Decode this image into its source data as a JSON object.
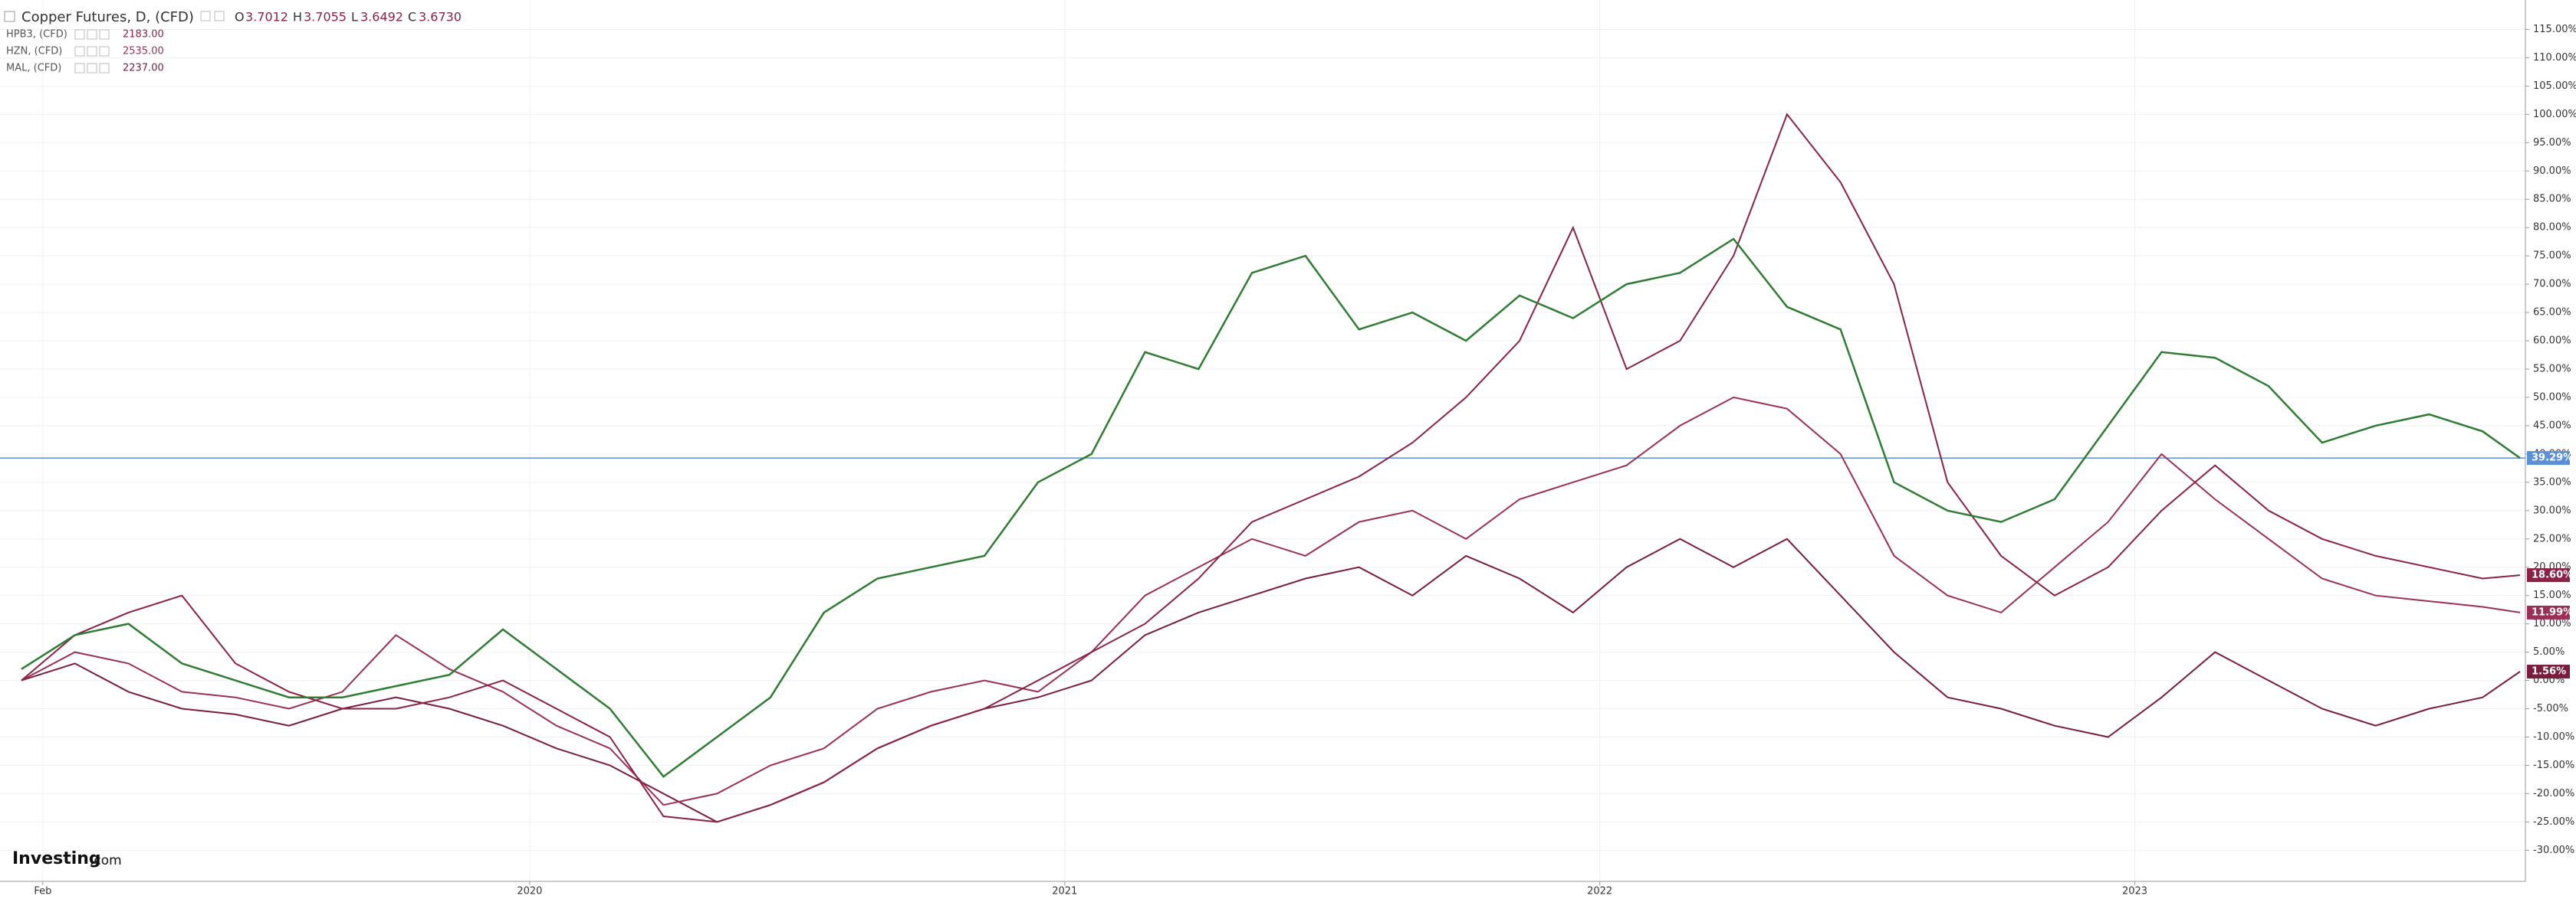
{
  "chart_data": {
    "type": "line",
    "ohlc": {
      "O": "3.7012",
      "H": "3.7055",
      "L": "3.6492",
      "C": "3.6730"
    },
    "brand": "Investing",
    "brand_suffix": ".com",
    "x": [
      2019.05,
      2019.15,
      2019.25,
      2019.35,
      2019.45,
      2019.55,
      2019.65,
      2019.75,
      2019.85,
      2019.95,
      2020.05,
      2020.15,
      2020.25,
      2020.35,
      2020.45,
      2020.55,
      2020.65,
      2020.75,
      2020.85,
      2020.95,
      2021.05,
      2021.15,
      2021.25,
      2021.35,
      2021.45,
      2021.55,
      2021.65,
      2021.75,
      2021.85,
      2021.95,
      2022.05,
      2022.15,
      2022.25,
      2022.35,
      2022.45,
      2022.55,
      2022.65,
      2022.75,
      2022.85,
      2022.95,
      2023.05,
      2023.15,
      2023.25,
      2023.35,
      2023.45,
      2023.55,
      2023.65,
      2023.72
    ],
    "xlim": [
      2019.01,
      2023.73
    ],
    "xticks": [
      {
        "value": 2019.09,
        "label": "Feb"
      },
      2020,
      2021,
      2022,
      2023
    ],
    "ylim": [
      -35.5,
      120.2
    ],
    "yticks": [
      {
        "value": 115,
        "label": "115.00%"
      },
      {
        "value": 110,
        "label": "110.00%"
      },
      {
        "value": 105,
        "label": "105.00%"
      },
      {
        "value": 100,
        "label": "100.00%"
      },
      {
        "value": 95,
        "label": "95.00%"
      },
      {
        "value": 90,
        "label": "90.00%"
      },
      {
        "value": 85,
        "label": "85.00%"
      },
      {
        "value": 80,
        "label": "80.00%"
      },
      {
        "value": 75,
        "label": "75.00%"
      },
      {
        "value": 70,
        "label": "70.00%"
      },
      {
        "value": 65,
        "label": "65.00%"
      },
      {
        "value": 60,
        "label": "60.00%"
      },
      {
        "value": 55,
        "label": "55.00%"
      },
      {
        "value": 50,
        "label": "50.00%"
      },
      {
        "value": 45,
        "label": "45.00%"
      },
      {
        "value": 40,
        "label": "40.00%"
      },
      {
        "value": 35,
        "label": "35.00%"
      },
      {
        "value": 30,
        "label": "30.00%"
      },
      {
        "value": 25,
        "label": "25.00%"
      },
      {
        "value": 20,
        "label": "20.00%"
      },
      {
        "value": 15,
        "label": "15.00%"
      },
      {
        "value": 10,
        "label": "10.00%"
      },
      {
        "value": 5,
        "label": "5.00%"
      },
      {
        "value": 0,
        "label": "0.00%"
      },
      {
        "value": -5,
        "label": "-5.00%"
      },
      {
        "value": -10,
        "label": "-10.00%"
      },
      {
        "value": -15,
        "label": "-15.00%"
      },
      {
        "value": -20,
        "label": "-20.00%"
      },
      {
        "value": -25,
        "label": "-25.00%"
      },
      {
        "value": -30,
        "label": "-30.00%"
      }
    ],
    "grid": true,
    "price_line_color": "#5b8fd6",
    "series": [
      {
        "name": "Copper Futures, D, (CFD)",
        "color": "#2e7d32",
        "values": [
          2,
          8,
          10,
          3,
          0,
          -3,
          -3,
          -1,
          1,
          9,
          2,
          -5,
          -17,
          -10,
          -3,
          12,
          18,
          20,
          22,
          35,
          40,
          58,
          55,
          72,
          75,
          62,
          65,
          60,
          68,
          64,
          70,
          72,
          78,
          66,
          62,
          35,
          30,
          28,
          32,
          45,
          58,
          57,
          52,
          42,
          45,
          47,
          44,
          39.29
        ],
        "value_labels": [
          null,
          null,
          null,
          null,
          null,
          null,
          null,
          null,
          null,
          null,
          null,
          null,
          null,
          null,
          null,
          null,
          null,
          null,
          null,
          null,
          null,
          null,
          null,
          null,
          null,
          null,
          null,
          null,
          null,
          null,
          null,
          null,
          null,
          null,
          null,
          null,
          null,
          null,
          null,
          null,
          null,
          null,
          null,
          null,
          null,
          null,
          null,
          "39.29%"
        ]
      },
      {
        "name": "HPB3, (CFD)",
        "legend_value": "2183.00",
        "color": "#8b2146",
        "values": [
          0,
          8,
          12,
          15,
          3,
          -2,
          -5,
          -5,
          -3,
          0,
          -5,
          -10,
          -24,
          -25,
          -22,
          -18,
          -12,
          -8,
          -5,
          0,
          5,
          10,
          18,
          28,
          32,
          36,
          42,
          50,
          60,
          80,
          55,
          60,
          75,
          100,
          88,
          70,
          35,
          22,
          15,
          20,
          30,
          38,
          30,
          25,
          22,
          20,
          18,
          18.6
        ],
        "value_labels": [
          null,
          null,
          null,
          null,
          null,
          null,
          null,
          null,
          null,
          null,
          null,
          null,
          null,
          null,
          null,
          null,
          null,
          null,
          null,
          null,
          null,
          null,
          null,
          null,
          null,
          null,
          null,
          null,
          null,
          null,
          null,
          null,
          null,
          null,
          null,
          null,
          null,
          null,
          null,
          null,
          null,
          null,
          null,
          null,
          null,
          null,
          null,
          "18.60%"
        ]
      },
      {
        "name": "HZN, (CFD)",
        "legend_value": "2535.00",
        "color": "#9c2f55",
        "values": [
          0,
          5,
          3,
          -2,
          -3,
          -5,
          -2,
          8,
          2,
          -2,
          -8,
          -12,
          -22,
          -20,
          -15,
          -12,
          -5,
          -2,
          0,
          -2,
          5,
          15,
          20,
          25,
          22,
          28,
          30,
          25,
          32,
          35,
          38,
          45,
          50,
          48,
          40,
          22,
          15,
          12,
          20,
          28,
          40,
          32,
          25,
          18,
          15,
          14,
          13,
          11.99
        ],
        "value_labels": [
          null,
          null,
          null,
          null,
          null,
          null,
          null,
          null,
          null,
          null,
          null,
          null,
          null,
          null,
          null,
          null,
          null,
          null,
          null,
          null,
          null,
          null,
          null,
          null,
          null,
          null,
          null,
          null,
          null,
          null,
          null,
          null,
          null,
          null,
          null,
          null,
          null,
          null,
          null,
          null,
          null,
          null,
          null,
          null,
          null,
          null,
          null,
          "11.99%"
        ]
      },
      {
        "name": "MAL, (CFD)",
        "legend_value": "2237.00",
        "color": "#7a1d3d",
        "values": [
          0,
          3,
          -2,
          -5,
          -6,
          -8,
          -5,
          -3,
          -5,
          -8,
          -12,
          -15,
          -20,
          -25,
          -22,
          -18,
          -12,
          -8,
          -5,
          -3,
          0,
          8,
          12,
          15,
          18,
          20,
          15,
          22,
          18,
          12,
          20,
          25,
          20,
          25,
          15,
          5,
          -3,
          -5,
          -8,
          -10,
          -3,
          5,
          0,
          -5,
          -8,
          -5,
          -3,
          1.56
        ],
        "value_labels": [
          null,
          null,
          null,
          null,
          null,
          null,
          null,
          null,
          null,
          null,
          null,
          null,
          null,
          null,
          null,
          null,
          null,
          null,
          null,
          null,
          null,
          null,
          null,
          null,
          null,
          null,
          null,
          null,
          null,
          null,
          null,
          null,
          null,
          null,
          null,
          null,
          null,
          null,
          null,
          null,
          null,
          null,
          null,
          null,
          null,
          null,
          null,
          "1.56%"
        ]
      }
    ]
  }
}
